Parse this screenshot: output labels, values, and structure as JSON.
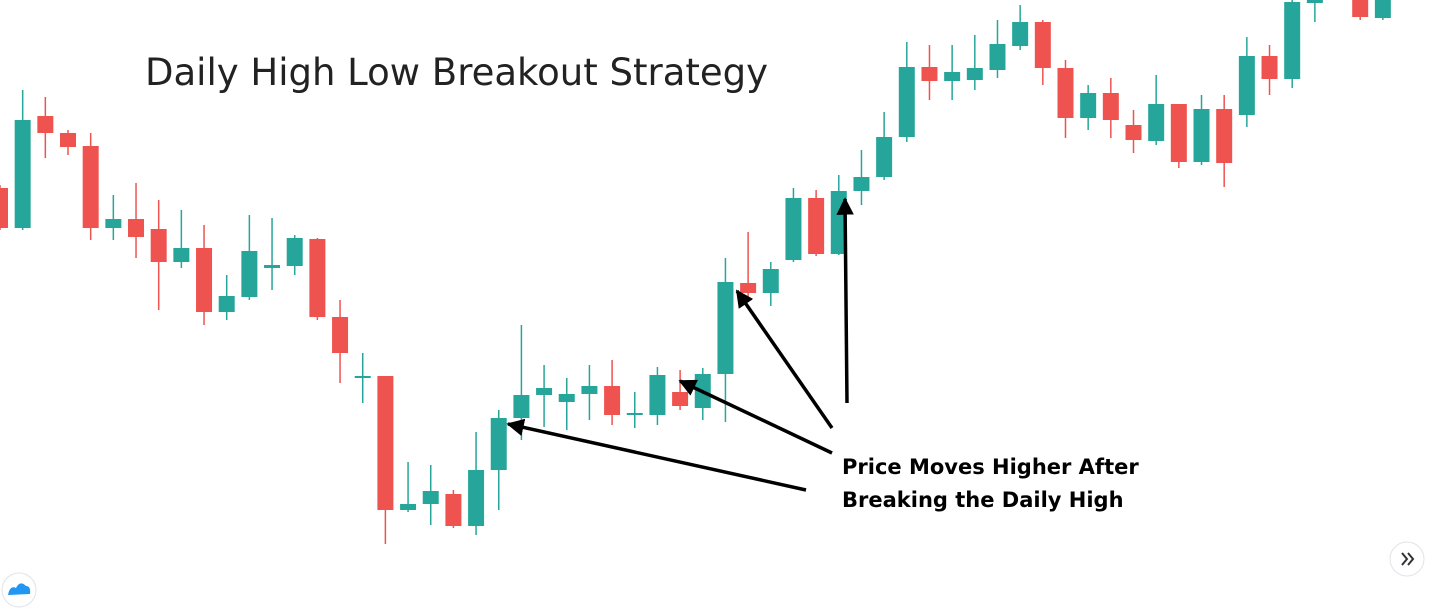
{
  "chart_data": {
    "type": "candlestick",
    "title": "Daily High Low Breakout Strategy",
    "annotations": [
      "Price Moves Higher After",
      "Breaking the Daily High"
    ],
    "up_color": "#26a69a",
    "down_color": "#ef5350",
    "grid": false,
    "ylim": [
      0,
      613
    ],
    "open": [
      425,
      385,
      497,
      480,
      467,
      385,
      394,
      384,
      351,
      365,
      301,
      316,
      345,
      347,
      374,
      296,
      235,
      237,
      103,
      109,
      119,
      87,
      143,
      195,
      218,
      211,
      219,
      227,
      198,
      198,
      221,
      205,
      239,
      330,
      320,
      353,
      415,
      359,
      422,
      436,
      476,
      546,
      532,
      533,
      543,
      567,
      591,
      545,
      495,
      520,
      488,
      472,
      509,
      451,
      504,
      498,
      557,
      534,
      610,
      null,
      613,
      595
    ],
    "high": [
      428,
      523,
      516,
      483,
      480,
      418,
      430,
      413,
      403,
      388,
      338,
      398,
      395,
      378,
      375,
      313,
      260,
      237,
      151,
      148,
      123,
      181,
      203,
      288,
      248,
      235,
      248,
      253,
      221,
      246,
      243,
      245,
      355,
      381,
      351,
      425,
      423,
      438,
      463,
      501,
      571,
      568,
      568,
      578,
      593,
      608,
      593,
      553,
      528,
      535,
      503,
      538,
      509,
      518,
      518,
      576,
      568,
      613,
      613,
      null,
      613,
      613
    ],
    "low": [
      383,
      383,
      455,
      458,
      373,
      373,
      355,
      303,
      345,
      288,
      293,
      313,
      323,
      338,
      293,
      230,
      210,
      69,
      101,
      88,
      85,
      78,
      103,
      173,
      186,
      183,
      193,
      188,
      185,
      188,
      203,
      193,
      191,
      313,
      307,
      351,
      357,
      358,
      408,
      433,
      471,
      513,
      513,
      523,
      535,
      563,
      528,
      475,
      483,
      475,
      460,
      468,
      445,
      448,
      426,
      486,
      518,
      525,
      591,
      null,
      593,
      593
    ],
    "close": [
      385,
      493,
      480,
      466,
      385,
      394,
      376,
      351,
      365,
      301,
      317,
      362,
      348,
      375,
      296,
      260,
      237,
      103,
      109,
      122,
      87,
      143,
      195,
      218,
      225,
      219,
      227,
      198,
      200,
      238,
      207,
      239,
      331,
      320,
      344,
      415,
      359,
      422,
      436,
      476,
      546,
      532,
      541,
      545,
      569,
      591,
      545,
      495,
      520,
      493,
      473,
      509,
      451,
      504,
      450,
      557,
      534,
      611,
      613,
      null,
      596,
      613
    ]
  }
}
